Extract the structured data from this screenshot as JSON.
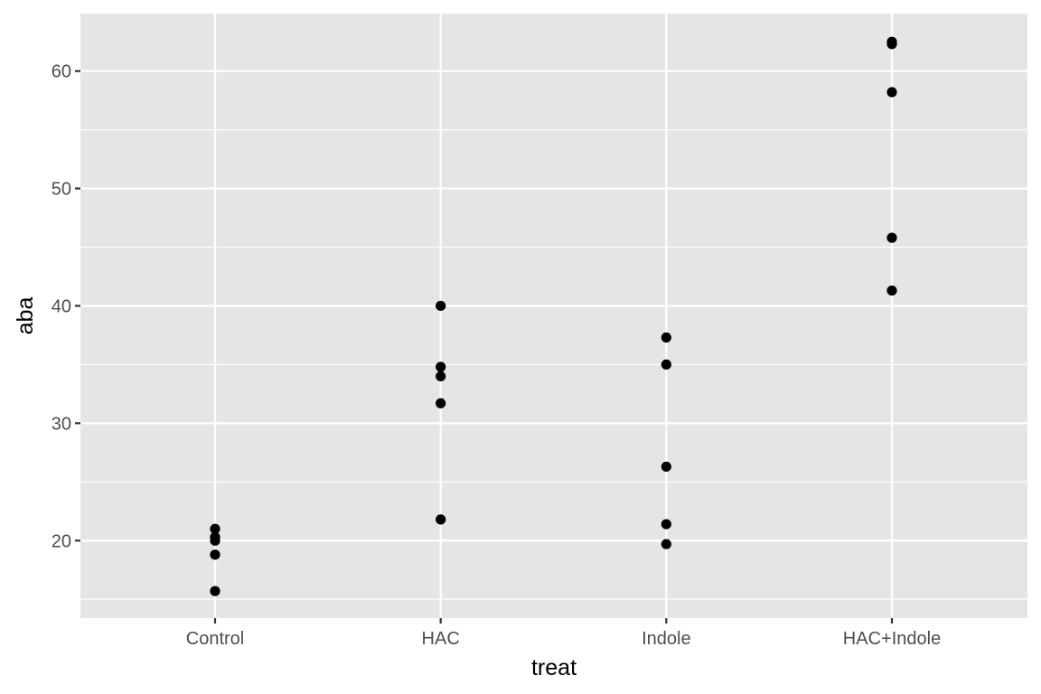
{
  "chart_data": {
    "type": "scatter",
    "xlabel": "treat",
    "ylabel": "aba",
    "categories": [
      "Control",
      "HAC",
      "Indole",
      "HAC+Indole"
    ],
    "ylim": [
      13.4,
      64.9
    ],
    "y_ticks": [
      20,
      30,
      40,
      50,
      60
    ],
    "y_tick_labels": [
      "20",
      "30",
      "40",
      "50",
      "60"
    ],
    "grid": true,
    "panel_color": "#e5e5e5",
    "grid_color": "#ffffff",
    "point_color": "#000000",
    "points": [
      {
        "treat": "Control",
        "aba": 21.0
      },
      {
        "treat": "Control",
        "aba": 20.3
      },
      {
        "treat": "Control",
        "aba": 20.0
      },
      {
        "treat": "Control",
        "aba": 18.8
      },
      {
        "treat": "Control",
        "aba": 15.7
      },
      {
        "treat": "HAC",
        "aba": 40.0
      },
      {
        "treat": "HAC",
        "aba": 34.8
      },
      {
        "treat": "HAC",
        "aba": 34.0
      },
      {
        "treat": "HAC",
        "aba": 31.7
      },
      {
        "treat": "HAC",
        "aba": 21.8
      },
      {
        "treat": "Indole",
        "aba": 37.3
      },
      {
        "treat": "Indole",
        "aba": 35.0
      },
      {
        "treat": "Indole",
        "aba": 26.3
      },
      {
        "treat": "Indole",
        "aba": 21.4
      },
      {
        "treat": "Indole",
        "aba": 19.7
      },
      {
        "treat": "HAC+Indole",
        "aba": 62.5
      },
      {
        "treat": "HAC+Indole",
        "aba": 62.3
      },
      {
        "treat": "HAC+Indole",
        "aba": 58.2
      },
      {
        "treat": "HAC+Indole",
        "aba": 45.8
      },
      {
        "treat": "HAC+Indole",
        "aba": 41.3
      }
    ]
  }
}
